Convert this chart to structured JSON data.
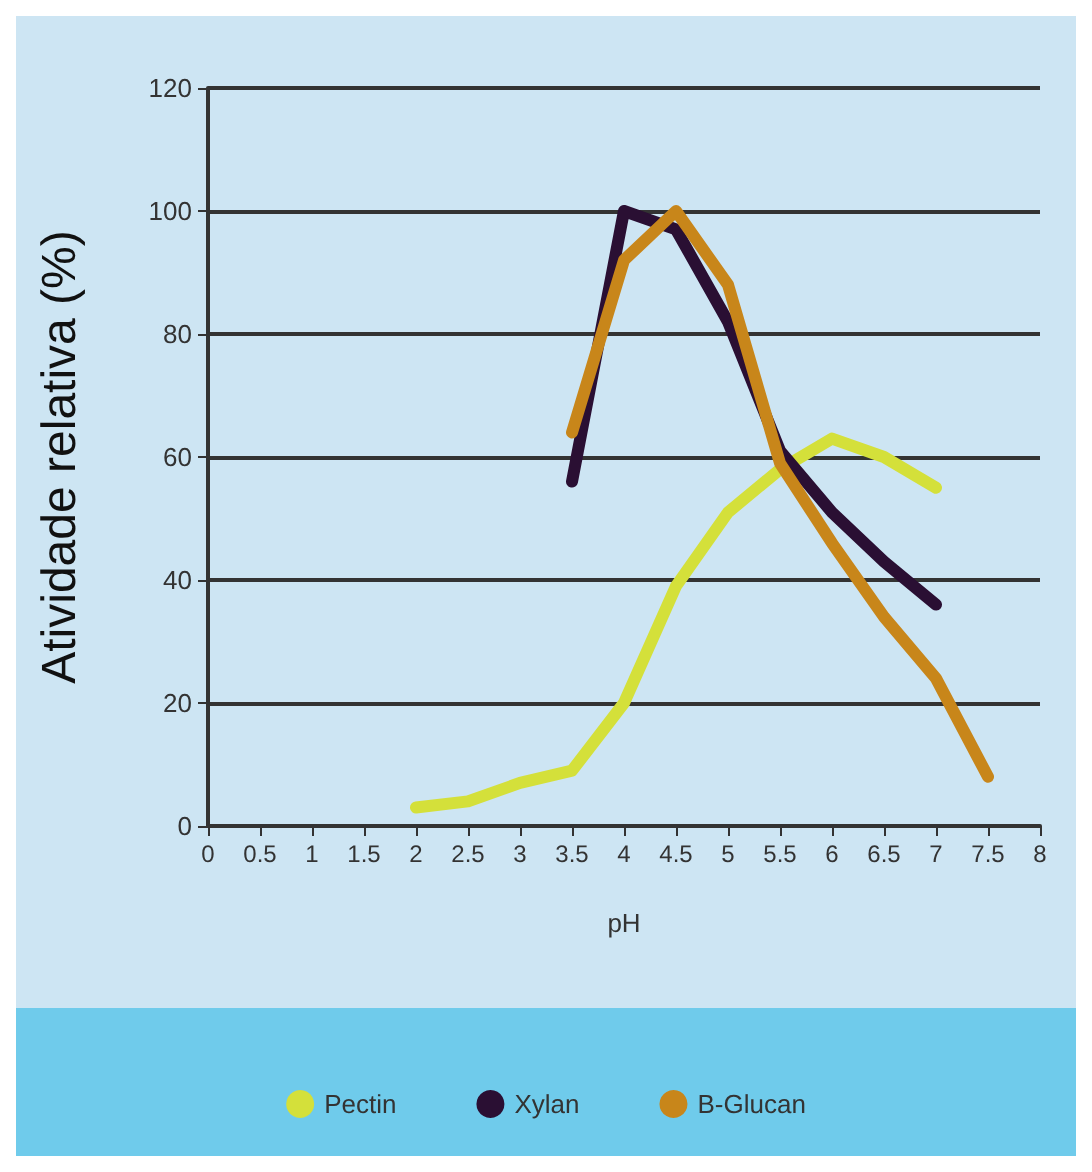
{
  "chart_data": {
    "type": "line",
    "xlabel": "pH",
    "ylabel": "Atividade relativa (%)",
    "xlim": [
      0,
      8
    ],
    "xticks": [
      0,
      0.5,
      1,
      1.5,
      2,
      2.5,
      3,
      3.5,
      4,
      4.5,
      5,
      5.5,
      6,
      6.5,
      7,
      7.5,
      8
    ],
    "ylim": [
      0,
      120
    ],
    "yticks": [
      0,
      20,
      40,
      60,
      80,
      100,
      120
    ],
    "grid": "y",
    "legend": "bottom",
    "marker": "none",
    "line_style": "solid",
    "series": [
      {
        "name": "Pectin",
        "color": "#d4e03a",
        "x": [
          2,
          2.5,
          3,
          3.5,
          4,
          4.5,
          5,
          5.5,
          6,
          6.5,
          7
        ],
        "values": [
          3,
          4,
          7,
          9,
          20,
          39,
          51,
          58,
          63,
          60,
          55
        ]
      },
      {
        "name": "Xylan",
        "color": "#2a0f33",
        "x": [
          3.5,
          4,
          4.5,
          5,
          5.5,
          6,
          6.5,
          7
        ],
        "values": [
          56,
          100,
          97,
          82,
          61,
          51,
          43,
          36
        ]
      },
      {
        "name": "B-Glucan",
        "color": "#c8861a",
        "x": [
          3.5,
          4,
          4.5,
          5,
          5.5,
          6,
          6.5,
          7,
          7.5
        ],
        "values": [
          64,
          92,
          100,
          88,
          59,
          46,
          34,
          24,
          8
        ]
      }
    ]
  }
}
